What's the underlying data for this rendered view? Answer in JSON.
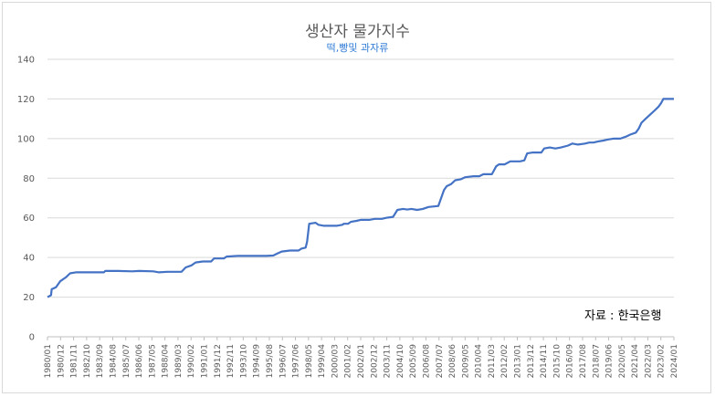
{
  "chart_data": {
    "type": "line",
    "title": "생산자 물가지수",
    "subtitle": "떡,빵및 과자류",
    "source": "자료 : 한국은행",
    "ylim": [
      0,
      140
    ],
    "yticks": [
      0,
      20,
      40,
      60,
      80,
      100,
      120,
      140
    ],
    "grid": "horizontal",
    "line_color": "#4472c4",
    "x_tick_labels": [
      "1980/01",
      "1980/12",
      "1981/11",
      "1982/10",
      "1983/09",
      "1984/08",
      "1985/07",
      "1986/06",
      "1987/05",
      "1988/04",
      "1989/03",
      "1990/02",
      "1991/01",
      "1991/12",
      "1992/11",
      "1993/10",
      "1994/09",
      "1995/08",
      "1996/07",
      "1997/06",
      "1998/05",
      "1999/04",
      "2000/03",
      "2001/02",
      "2002/01",
      "2002/12",
      "2003/11",
      "2004/10",
      "2005/09",
      "2006/08",
      "2007/07",
      "2008/06",
      "2009/05",
      "2010/04",
      "2011/03",
      "2012/02",
      "2013/01",
      "2013/12",
      "2014/11",
      "2015/10",
      "2016/09",
      "2017/08",
      "2018/07",
      "2019/06",
      "2020/05",
      "2021/04",
      "2022/03",
      "2023/02",
      "2024/01"
    ],
    "series": [
      {
        "values": [
          [
            1980.0,
            20
          ],
          [
            1980.25,
            21
          ],
          [
            1980.3,
            24
          ],
          [
            1980.6,
            25
          ],
          [
            1980.9,
            28
          ],
          [
            1981.3,
            30
          ],
          [
            1981.6,
            32
          ],
          [
            1982.0,
            32.5
          ],
          [
            1983.0,
            32.5
          ],
          [
            1984.0,
            32.5
          ],
          [
            1984.1,
            33.2
          ],
          [
            1985.0,
            33.2
          ],
          [
            1986.0,
            33.0
          ],
          [
            1986.5,
            33.2
          ],
          [
            1987.5,
            33.0
          ],
          [
            1987.9,
            32.5
          ],
          [
            1988.5,
            32.8
          ],
          [
            1989.5,
            32.8
          ],
          [
            1989.8,
            35
          ],
          [
            1990.2,
            36
          ],
          [
            1990.5,
            37.5
          ],
          [
            1991.0,
            38
          ],
          [
            1991.6,
            38
          ],
          [
            1991.8,
            39.5
          ],
          [
            1992.5,
            39.5
          ],
          [
            1992.7,
            40.5
          ],
          [
            1993.5,
            40.8
          ],
          [
            1994.5,
            40.8
          ],
          [
            1995.5,
            40.8
          ],
          [
            1996.0,
            41
          ],
          [
            1996.3,
            42
          ],
          [
            1996.6,
            43
          ],
          [
            1997.2,
            43.5
          ],
          [
            1997.8,
            43.5
          ],
          [
            1998.0,
            44.5
          ],
          [
            1998.3,
            45
          ],
          [
            1998.4,
            48
          ],
          [
            1998.55,
            57
          ],
          [
            1999.0,
            57.5
          ],
          [
            1999.2,
            56.5
          ],
          [
            1999.6,
            56
          ],
          [
            2000.5,
            56
          ],
          [
            2000.9,
            56.5
          ],
          [
            2001.0,
            57
          ],
          [
            2001.3,
            57
          ],
          [
            2001.5,
            58
          ],
          [
            2001.9,
            58.5
          ],
          [
            2002.2,
            59
          ],
          [
            2002.8,
            59
          ],
          [
            2003.2,
            59.5
          ],
          [
            2003.7,
            59.5
          ],
          [
            2004.0,
            60
          ],
          [
            2004.5,
            60.5
          ],
          [
            2004.8,
            64
          ],
          [
            2005.2,
            64.5
          ],
          [
            2005.5,
            64.2
          ],
          [
            2005.8,
            64.5
          ],
          [
            2006.2,
            64
          ],
          [
            2006.6,
            64.5
          ],
          [
            2007.0,
            65.5
          ],
          [
            2007.7,
            66
          ],
          [
            2007.9,
            70
          ],
          [
            2008.1,
            74
          ],
          [
            2008.3,
            76
          ],
          [
            2008.6,
            77
          ],
          [
            2008.9,
            79
          ],
          [
            2009.3,
            79.5
          ],
          [
            2009.6,
            80.5
          ],
          [
            2010.2,
            81
          ],
          [
            2010.6,
            81
          ],
          [
            2010.9,
            82
          ],
          [
            2011.5,
            82
          ],
          [
            2011.8,
            86
          ],
          [
            2012.0,
            87
          ],
          [
            2012.4,
            87
          ],
          [
            2012.8,
            88.5
          ],
          [
            2013.5,
            88.5
          ],
          [
            2013.8,
            89
          ],
          [
            2014.0,
            92.5
          ],
          [
            2014.4,
            93
          ],
          [
            2015.0,
            93
          ],
          [
            2015.2,
            95
          ],
          [
            2015.6,
            95.5
          ],
          [
            2016.0,
            95
          ],
          [
            2016.4,
            95.5
          ],
          [
            2016.9,
            96.5
          ],
          [
            2017.2,
            97.5
          ],
          [
            2017.6,
            97
          ],
          [
            2018.1,
            97.5
          ],
          [
            2018.4,
            98
          ],
          [
            2018.7,
            98
          ],
          [
            2019.0,
            98.5
          ],
          [
            2019.4,
            99
          ],
          [
            2019.7,
            99.5
          ],
          [
            2020.1,
            100
          ],
          [
            2020.6,
            100
          ],
          [
            2021.0,
            101
          ],
          [
            2021.3,
            102
          ],
          [
            2021.7,
            103
          ],
          [
            2021.9,
            105
          ],
          [
            2022.1,
            108
          ],
          [
            2022.4,
            110
          ],
          [
            2022.7,
            112
          ],
          [
            2023.0,
            114
          ],
          [
            2023.3,
            116
          ],
          [
            2023.5,
            118
          ],
          [
            2023.65,
            120
          ],
          [
            2024.0,
            120
          ],
          [
            2024.4,
            120
          ]
        ]
      }
    ]
  }
}
